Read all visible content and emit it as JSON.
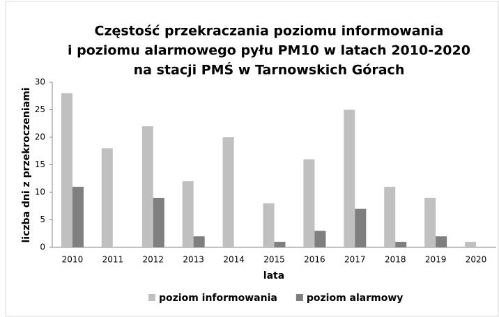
{
  "chart_data": {
    "type": "bar",
    "title": [
      "Częstość przekraczania poziomu informowania",
      "i poziomu alarmowego pyłu PM10 w latach 2010-2020",
      "na stacji PMŚ w Tarnowskich Górach"
    ],
    "x_label": "lata",
    "y_label": "liczba dni z przekroczeniami",
    "categories": [
      "2010",
      "2011",
      "2012",
      "2013",
      "2014",
      "2015",
      "2016",
      "2017",
      "2018",
      "2019",
      "2020"
    ],
    "series": [
      {
        "name": "poziom informowania",
        "color": "#c0c0c0",
        "values": [
          28,
          18,
          22,
          12,
          20,
          8,
          16,
          25,
          11,
          9,
          1
        ]
      },
      {
        "name": "poziom alarmowy",
        "color": "#7f7f7f",
        "values": [
          11,
          0,
          9,
          2,
          0,
          1,
          3,
          7,
          1,
          2,
          0
        ]
      }
    ],
    "ylim": [
      0,
      30
    ],
    "yticks": [
      0,
      5,
      10,
      15,
      20,
      25,
      30
    ],
    "grid": false,
    "legend": "bottom"
  }
}
